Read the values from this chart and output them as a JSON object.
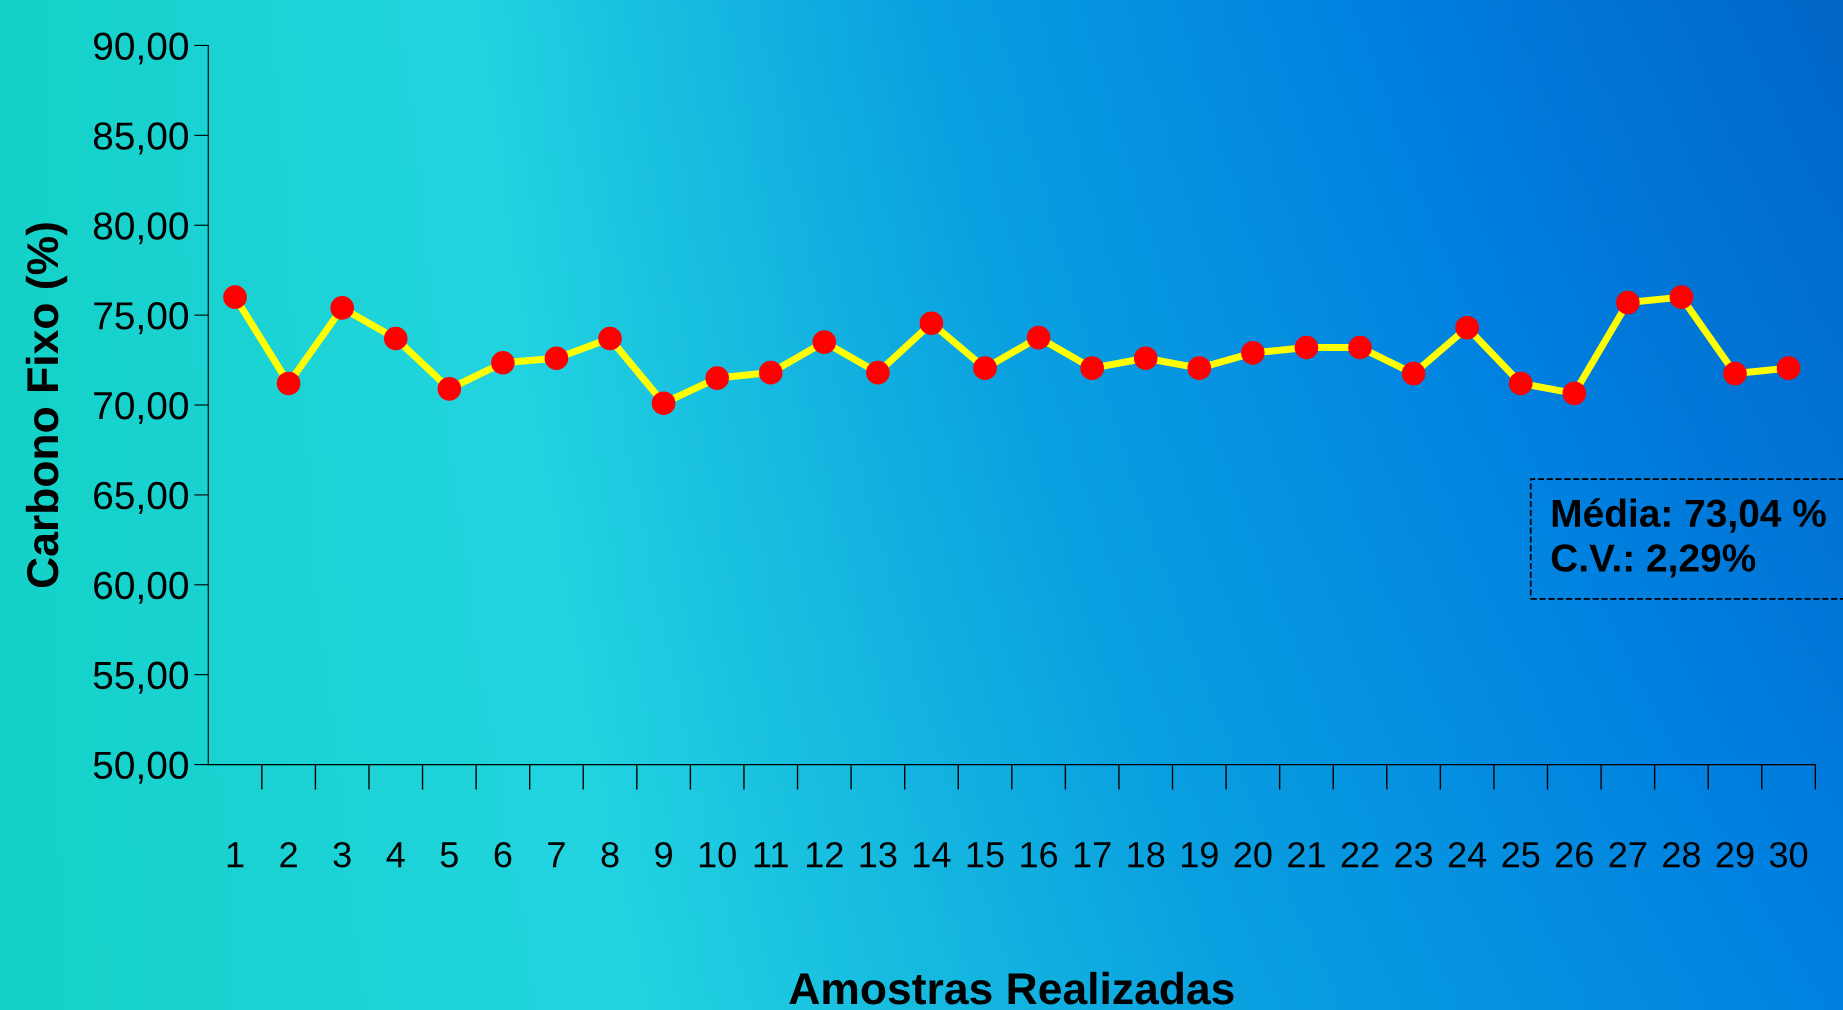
{
  "chart_data": {
    "type": "line",
    "xlabel": "Amostras Realizadas",
    "ylabel": "Carbono Fixo (%)",
    "categories": [
      "1",
      "2",
      "3",
      "4",
      "5",
      "6",
      "7",
      "8",
      "9",
      "10",
      "11",
      "12",
      "13",
      "14",
      "15",
      "16",
      "17",
      "18",
      "19",
      "20",
      "21",
      "22",
      "23",
      "24",
      "25",
      "26",
      "27",
      "28",
      "29",
      "30"
    ],
    "series": [
      {
        "color": "#ffff00",
        "values": [
          76.0,
          71.2,
          75.4,
          73.7,
          70.9,
          72.35,
          72.6,
          73.7,
          70.1,
          71.5,
          71.8,
          73.5,
          71.8,
          74.55,
          72.05,
          73.75,
          72.05,
          72.6,
          72.05,
          72.9,
          73.2,
          73.2,
          71.75,
          74.3,
          71.2,
          70.65,
          75.7,
          76.0,
          71.75,
          72.05
        ]
      }
    ],
    "ylim": [
      50,
      90
    ],
    "yticks": [
      {
        "value": 50,
        "label": "50,00"
      },
      {
        "value": 55,
        "label": "55,00"
      },
      {
        "value": 60,
        "label": "60,00"
      },
      {
        "value": 65,
        "label": "65,00"
      },
      {
        "value": 70,
        "label": "70,00"
      },
      {
        "value": 75,
        "label": "75,00"
      },
      {
        "value": 80,
        "label": "80,00"
      },
      {
        "value": 85,
        "label": "85,00"
      },
      {
        "value": 90,
        "label": "90,00"
      }
    ],
    "marker": "circle",
    "line_style": "solid",
    "grid": false,
    "legend": false,
    "annotations": [
      "Média: 73,04 %",
      "C.V.: 2,29%"
    ]
  }
}
